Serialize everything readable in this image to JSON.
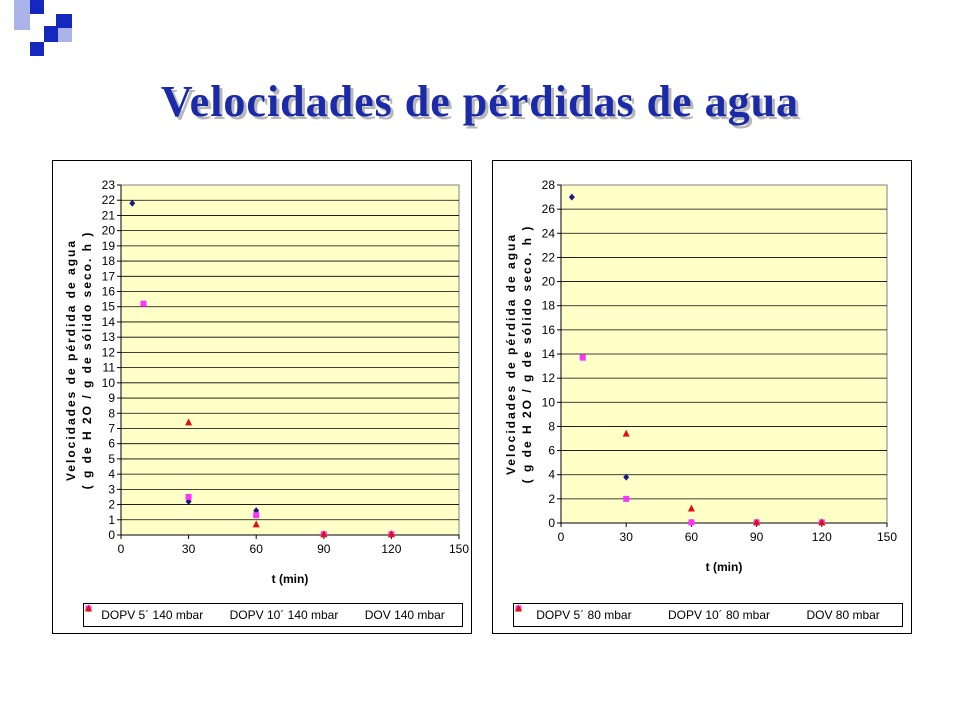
{
  "slide": {
    "title": "Velocidades de pérdidas de agua"
  },
  "colors": {
    "title": "#1a2aa8",
    "plot_bg": "#ffffc8",
    "series": [
      "#1a1a80",
      "#ff33ff",
      "#e01010"
    ],
    "deco_blue": "#1428c0",
    "deco_light": "#aab4e8"
  },
  "chart_data": [
    {
      "type": "scatter",
      "title": "",
      "xlabel": "t (min)",
      "ylabel_line1": "Velocidades de pérdida de agua",
      "ylabel_line2": "( g de H 2O / g de sólido seco. h )",
      "xlim": [
        0,
        150
      ],
      "ylim": [
        0,
        23
      ],
      "xticks": [
        0,
        30,
        60,
        90,
        120,
        150
      ],
      "ytick_step": 1,
      "grid": true,
      "legend_position": "bottom",
      "series": [
        {
          "name": "DOPV 5´ 140 mbar",
          "marker": "diamond",
          "x": [
            5,
            30,
            60,
            90,
            120
          ],
          "y": [
            21.8,
            2.2,
            1.6,
            0.05,
            0.05
          ]
        },
        {
          "name": "DOPV 10´ 140 mbar",
          "marker": "square",
          "x": [
            10,
            30,
            60,
            90,
            120
          ],
          "y": [
            15.2,
            2.5,
            1.3,
            0.05,
            0.05
          ]
        },
        {
          "name": "DOV 140 mbar",
          "marker": "triangle",
          "x": [
            30,
            60,
            90,
            120
          ],
          "y": [
            7.4,
            0.7,
            0.05,
            0.05
          ]
        }
      ]
    },
    {
      "type": "scatter",
      "title": "",
      "xlabel": "t (min)",
      "ylabel_line1": "Velocidades de pérdida de agua",
      "ylabel_line2": "( g de H 2O / g de sólido seco. h )",
      "xlim": [
        0,
        150
      ],
      "ylim": [
        0,
        28
      ],
      "xticks": [
        0,
        30,
        60,
        90,
        120,
        150
      ],
      "ytick_step": 2,
      "grid": true,
      "legend_position": "bottom",
      "series": [
        {
          "name": "DOPV 5´ 80 mbar",
          "marker": "diamond",
          "x": [
            5,
            30,
            60,
            90,
            120
          ],
          "y": [
            27.0,
            3.8,
            0.05,
            0.05,
            0.05
          ]
        },
        {
          "name": "DOPV 10´ 80 mbar",
          "marker": "square",
          "x": [
            10,
            30,
            60,
            90,
            120
          ],
          "y": [
            13.7,
            2.0,
            0.05,
            0.05,
            0.05
          ]
        },
        {
          "name": "DOV 80 mbar",
          "marker": "triangle",
          "x": [
            30,
            60,
            90,
            120
          ],
          "y": [
            7.4,
            1.2,
            0.05,
            0.05
          ]
        }
      ]
    }
  ]
}
